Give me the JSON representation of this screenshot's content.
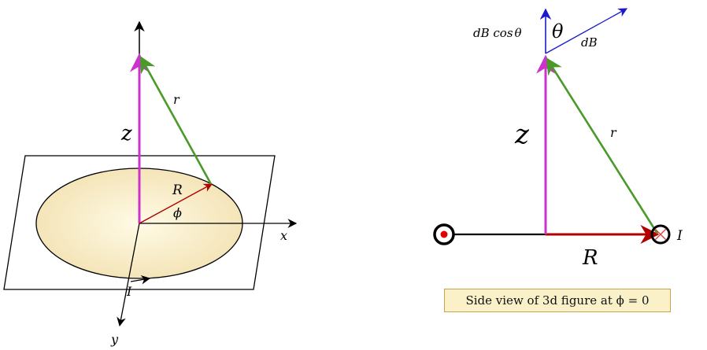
{
  "colors": {
    "z_vector": "#cc33cc",
    "r_vector": "#4a9a2a",
    "R_vector": "#b00000",
    "dB_vector": "#1a1acc",
    "axes": "#000000",
    "disk_fill_center": "#fffbe6",
    "disk_fill_edge": "#f3e2b4",
    "caption_bg": "#fbf1c9",
    "caption_border": "#c9a24a",
    "dot_current": "#e00000",
    "cross_current": "#e04040"
  },
  "left_figure": {
    "z_label": "z",
    "r_label": "r",
    "R_label": "R",
    "phi_label": "ϕ",
    "x_label": "x",
    "y_label": "y",
    "I_label": "I"
  },
  "right_figure": {
    "dBcos_label_main": "dB cos",
    "dBcos_label_theta": "θ",
    "theta_label": "θ",
    "dB_label": "dB",
    "z_label": "z",
    "r_label": "r",
    "R_label": "R",
    "I_label": "I",
    "caption": "Side view of 3d figure at ϕ = 0"
  }
}
